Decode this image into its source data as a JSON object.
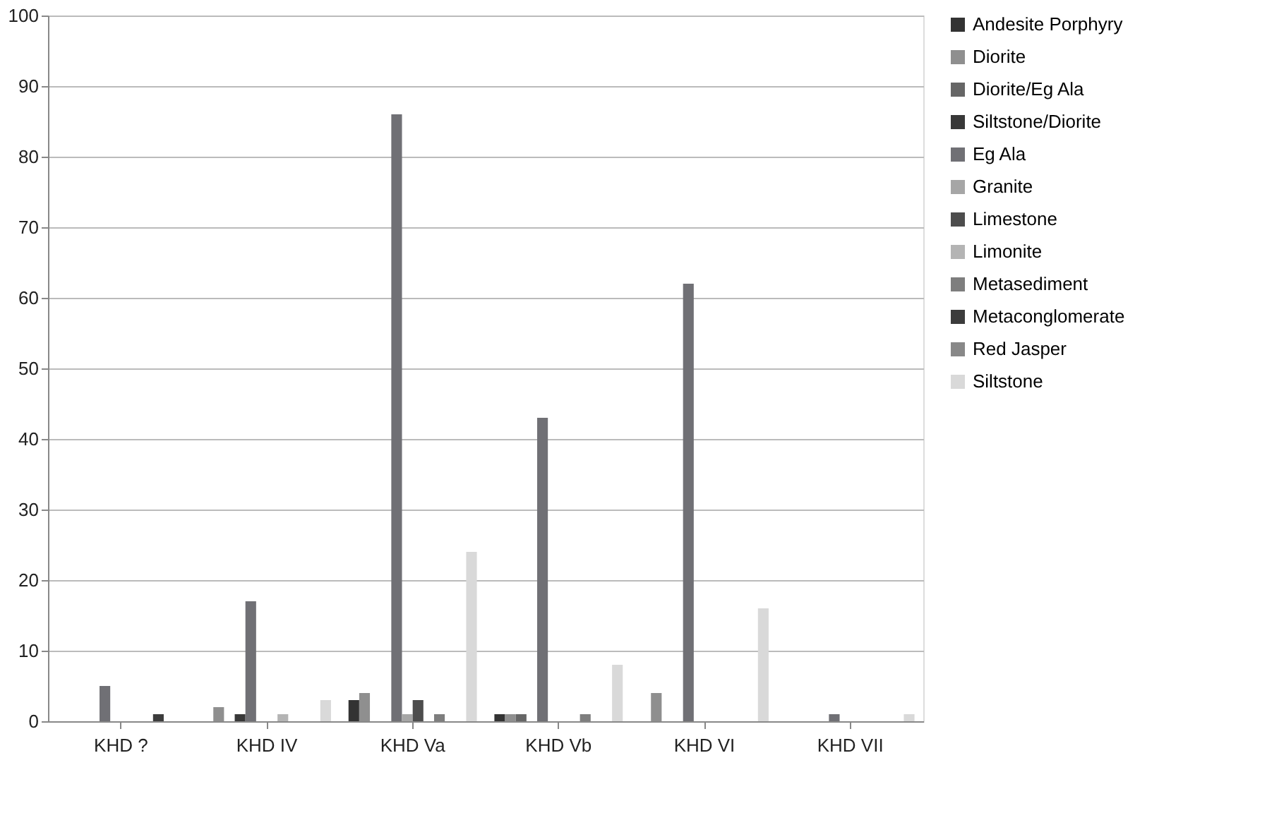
{
  "chart_data": {
    "type": "bar",
    "categories": [
      "KHD ?",
      "KHD IV",
      "KHD Va",
      "KHD Vb",
      "KHD VI",
      "KHD VII"
    ],
    "series": [
      {
        "name": "Andesite Porphyry",
        "color": "#333333",
        "values": [
          0,
          0,
          3,
          1,
          0,
          0
        ]
      },
      {
        "name": "Diorite",
        "color": "#8f8f8f",
        "values": [
          0,
          2,
          4,
          1,
          4,
          0
        ]
      },
      {
        "name": "Diorite/Eg Ala",
        "color": "#666666",
        "values": [
          0,
          0,
          0,
          1,
          0,
          0
        ]
      },
      {
        "name": "Siltstone/Diorite",
        "color": "#383838",
        "values": [
          0,
          1,
          0,
          0,
          0,
          0
        ]
      },
      {
        "name": "Eg Ala",
        "color": "#707075",
        "values": [
          5,
          17,
          86,
          43,
          62,
          1
        ]
      },
      {
        "name": "Granite",
        "color": "#a6a6a6",
        "values": [
          0,
          0,
          1,
          0,
          0,
          0
        ]
      },
      {
        "name": "Limestone",
        "color": "#4d4d4d",
        "values": [
          0,
          0,
          3,
          0,
          0,
          0
        ]
      },
      {
        "name": "Limonite",
        "color": "#b4b4b4",
        "values": [
          0,
          1,
          0,
          0,
          0,
          0
        ]
      },
      {
        "name": "Metasediment",
        "color": "#7e7e7e",
        "values": [
          0,
          0,
          1,
          1,
          0,
          0
        ]
      },
      {
        "name": "Metaconglomerate",
        "color": "#3c3c3c",
        "values": [
          1,
          0,
          0,
          0,
          0,
          0
        ]
      },
      {
        "name": "Red Jasper",
        "color": "#888888",
        "values": [
          0,
          0,
          0,
          0,
          0,
          0
        ]
      },
      {
        "name": "Siltstone",
        "color": "#d9d9d9",
        "values": [
          0,
          3,
          24,
          8,
          16,
          1
        ]
      }
    ],
    "ylim": [
      0,
      100
    ],
    "yticks": [
      0,
      10,
      20,
      30,
      40,
      50,
      60,
      70,
      80,
      90,
      100
    ],
    "grid": "y",
    "legend": "right"
  }
}
